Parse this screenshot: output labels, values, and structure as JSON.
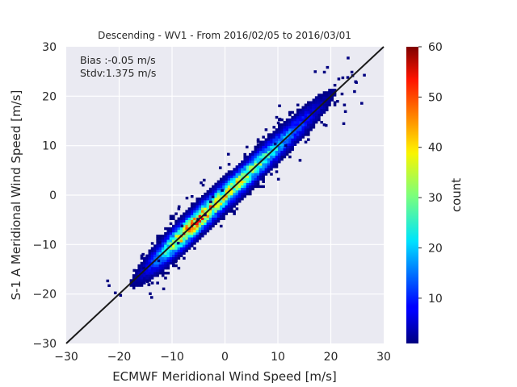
{
  "chart_data": {
    "type": "heatmap",
    "subtype": "2d-histogram",
    "title": "Descending - WV1 - From 2016/02/05 to 2016/03/01",
    "xlabel": "ECMWF Meridional Wind Speed [m/s]",
    "ylabel": "S-1 A Meridional Wind Speed [m/s]",
    "xlim": [
      -30,
      30
    ],
    "ylim": [
      -30,
      30
    ],
    "xticks": [
      "−30",
      "−20",
      "−10",
      "0",
      "10",
      "20",
      "30"
    ],
    "yticks": [
      "−30",
      "−20",
      "−10",
      "0",
      "10",
      "20",
      "30"
    ],
    "grid": true,
    "annotations": [
      "Bias :-0.05 m/s",
      "Stdv:1.375 m/s"
    ],
    "reference_line": {
      "x": [
        -30,
        30
      ],
      "y": [
        -30,
        30
      ],
      "color": "#1a1a1a"
    },
    "colorbar": {
      "label": "count",
      "colormap": "jet",
      "range": [
        1,
        60
      ],
      "ticks": [
        "10",
        "20",
        "30",
        "40",
        "50",
        "60"
      ]
    },
    "distribution": {
      "description_free": true,
      "bias": -0.05,
      "stdv": 1.375,
      "x_extent": [
        -23,
        28
      ],
      "peak_x": -7,
      "peak_count": 55
    }
  },
  "colors": {
    "plot_background": "#eaeaf2",
    "grid": "#ffffff",
    "text": "#262626"
  }
}
